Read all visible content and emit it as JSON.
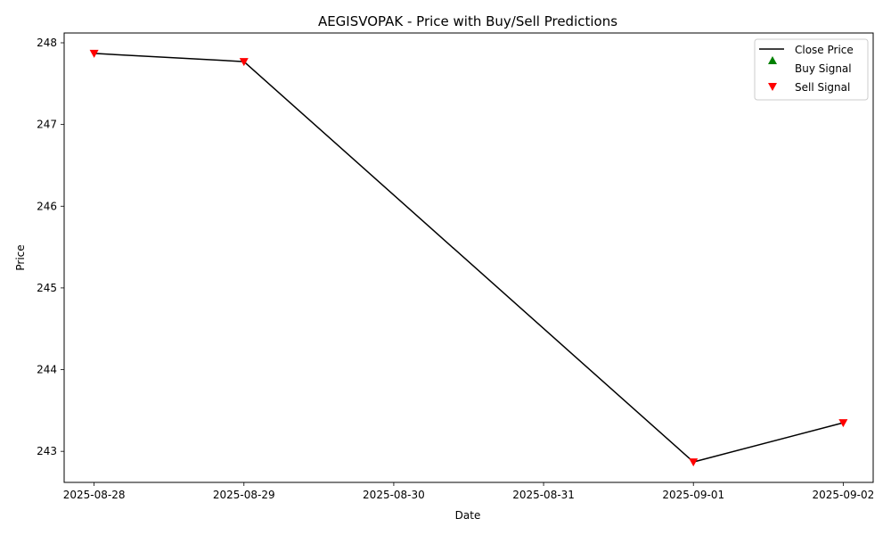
{
  "chart_data": {
    "type": "line",
    "title": "AEGISVOPAK - Price with Buy/Sell Predictions",
    "xlabel": "Date",
    "ylabel": "Price",
    "x_ticks": [
      "2025-08-28",
      "2025-08-29",
      "2025-08-30",
      "2025-08-31",
      "2025-09-01",
      "2025-09-02"
    ],
    "y_ticks": [
      243,
      244,
      245,
      246,
      247,
      248
    ],
    "xlim": [
      "2025-08-27T19:12",
      "2025-09-02T04:48"
    ],
    "ylim": [
      242.62,
      248.12
    ],
    "grid": false,
    "legend_position": "top-right",
    "series": [
      {
        "name": "Close Price",
        "kind": "line",
        "color": "#000000",
        "x": [
          "2025-08-28",
          "2025-08-29",
          "2025-09-01",
          "2025-09-02"
        ],
        "y": [
          247.87,
          247.77,
          242.87,
          243.35
        ]
      },
      {
        "name": "Buy Signal",
        "kind": "scatter",
        "marker": "triangle-up",
        "color": "#008000",
        "x": [],
        "y": []
      },
      {
        "name": "Sell Signal",
        "kind": "scatter",
        "marker": "triangle-down",
        "color": "#ff0000",
        "x": [
          "2025-08-28",
          "2025-08-29",
          "2025-09-01",
          "2025-09-02"
        ],
        "y": [
          247.87,
          247.77,
          242.87,
          243.35
        ]
      }
    ]
  }
}
